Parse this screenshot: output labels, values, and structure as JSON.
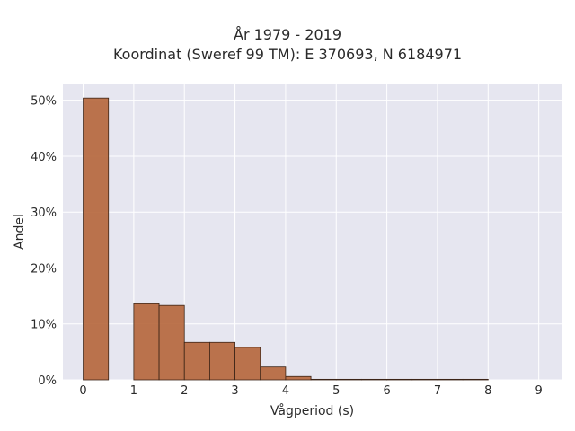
{
  "chart_data": {
    "type": "bar",
    "title": "År 1979 - 2019",
    "subtitle": "Koordinat (Sweref 99 TM): E 370693, N 6184971",
    "xlabel": "Vågperiod (s)",
    "ylabel": "Andel",
    "xlim": [
      -0.4,
      9.45
    ],
    "ylim": [
      0,
      0.53
    ],
    "x_ticks": [
      0,
      1,
      2,
      3,
      4,
      5,
      6,
      7,
      8,
      9
    ],
    "y_ticks": [
      0,
      0.1,
      0.2,
      0.3,
      0.4,
      0.5
    ],
    "y_tick_labels": [
      "0%",
      "10%",
      "20%",
      "30%",
      "40%",
      "50%"
    ],
    "grid": true,
    "bin_width": 0.5,
    "bins": [
      {
        "start": 0.0,
        "value": 0.504
      },
      {
        "start": 0.5,
        "value": 0.0
      },
      {
        "start": 1.0,
        "value": 0.136
      },
      {
        "start": 1.5,
        "value": 0.133
      },
      {
        "start": 2.0,
        "value": 0.067
      },
      {
        "start": 2.5,
        "value": 0.067
      },
      {
        "start": 3.0,
        "value": 0.058
      },
      {
        "start": 3.5,
        "value": 0.023
      },
      {
        "start": 4.0,
        "value": 0.006
      },
      {
        "start": 4.5,
        "value": 0.001
      },
      {
        "start": 5.0,
        "value": 0.001
      },
      {
        "start": 5.5,
        "value": 0.001
      },
      {
        "start": 6.0,
        "value": 0.001
      },
      {
        "start": 6.5,
        "value": 0.001
      },
      {
        "start": 7.0,
        "value": 0.001
      },
      {
        "start": 7.5,
        "value": 0.001
      }
    ],
    "colors": {
      "bar_fill": "#b5653a",
      "bar_stroke": "#3b2417",
      "plot_bg": "#e6e6f0",
      "grid": "#ffffff"
    }
  }
}
